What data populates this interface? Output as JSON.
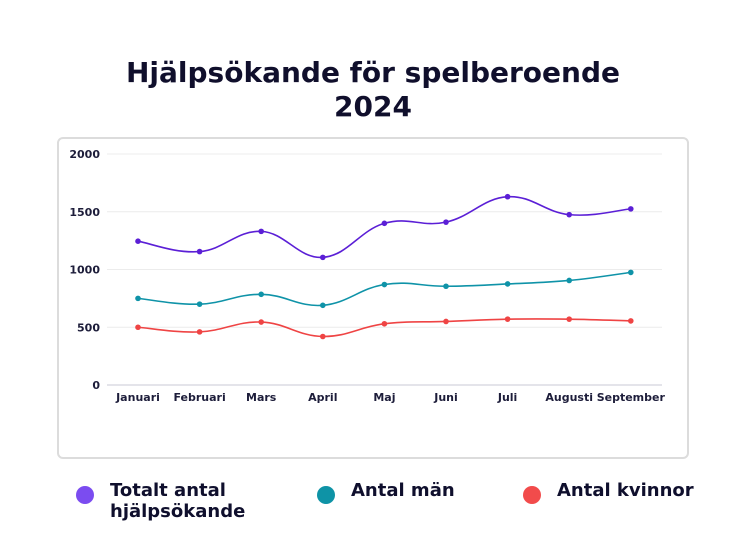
{
  "chart_data": {
    "type": "line",
    "title_lines": [
      "Hjälpsökande för spelberoende",
      "2024"
    ],
    "categories": [
      "Januari",
      "Februari",
      "Mars",
      "April",
      "Maj",
      "Juni",
      "Juli",
      "Augusti",
      "September"
    ],
    "ylim": [
      0,
      2000
    ],
    "yticks": [
      0,
      500,
      1000,
      1500,
      2000
    ],
    "grid": true,
    "legend_position": "bottom",
    "series": [
      {
        "key": "total",
        "name_lines": [
          "Totalt antal",
          "hjälpsökande"
        ],
        "color": "#5b1fd6",
        "legend_color": "#7b4cf0",
        "values": [
          1245,
          1155,
          1330,
          1105,
          1400,
          1410,
          1630,
          1475,
          1525
        ]
      },
      {
        "key": "men",
        "name_lines": [
          "Antal män"
        ],
        "color": "#0f93a8",
        "legend_color": "#0e93a6",
        "values": [
          750,
          700,
          785,
          690,
          870,
          855,
          875,
          905,
          975
        ]
      },
      {
        "key": "women",
        "name_lines": [
          "Antal kvinnor"
        ],
        "color": "#ef4444",
        "legend_color": "#f24b4b",
        "values": [
          500,
          460,
          545,
          420,
          530,
          550,
          570,
          570,
          555
        ]
      }
    ]
  }
}
